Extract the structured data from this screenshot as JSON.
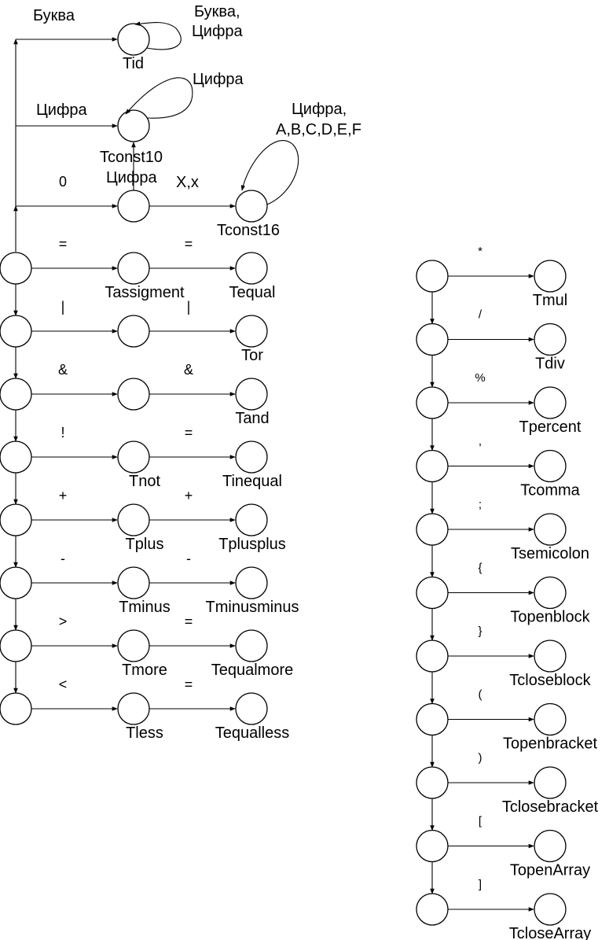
{
  "left_column": {
    "top_branches": {
      "tid": {
        "edge_label": "Буква",
        "loop_label_1": "Буква,",
        "loop_label_2": "Цифра",
        "name": "Tid"
      },
      "tconst10": {
        "edge_label": "Цифра",
        "loop_label": "Цифра",
        "name": "Tconst10"
      },
      "tconst16": {
        "zero_label": "0",
        "up_label": "Цифра",
        "x_label": "X,x",
        "loop_label_1": "Цифра,",
        "loop_label_2": "A,B,C,D,E,F",
        "name": "Tconst16"
      }
    },
    "rows": [
      {
        "sym1": "=",
        "name1": "Tassigment",
        "sym2": "=",
        "name2": "Tequal"
      },
      {
        "sym1": "|",
        "name1": "",
        "sym2": "|",
        "name2": "Tor"
      },
      {
        "sym1": "&",
        "name1": "",
        "sym2": "&",
        "name2": "Tand"
      },
      {
        "sym1": "!",
        "name1": "Tnot",
        "sym2": "=",
        "name2": "Tinequal"
      },
      {
        "sym1": "+",
        "name1": "Tplus",
        "sym2": "+",
        "name2": "Tplusplus"
      },
      {
        "sym1": "-",
        "name1": "Tminus",
        "sym2": "-",
        "name2": "Tminusminus"
      },
      {
        "sym1": ">",
        "name1": "Tmore",
        "sym2": "=",
        "name2": "Tequalmore"
      },
      {
        "sym1": "<",
        "name1": "Tless",
        "sym2": "=",
        "name2": "Tequalless"
      }
    ]
  },
  "right_column": {
    "rows": [
      {
        "sym": "*",
        "name": "Tmul"
      },
      {
        "sym": "/",
        "name": "Tdiv"
      },
      {
        "sym": "%",
        "name": "Tpercent"
      },
      {
        "sym": ",",
        "name": "Tcomma"
      },
      {
        "sym": ";",
        "name": "Tsemicolon"
      },
      {
        "sym": "{",
        "name": "Topenblock"
      },
      {
        "sym": "}",
        "name": "Tcloseblock"
      },
      {
        "sym": "(",
        "name": "Topenbracket"
      },
      {
        "sym": ")",
        "name": "Tclosebracket"
      },
      {
        "sym": "[",
        "name": "TopenArray"
      },
      {
        "sym": "]",
        "name": "TcloseArray"
      }
    ]
  }
}
